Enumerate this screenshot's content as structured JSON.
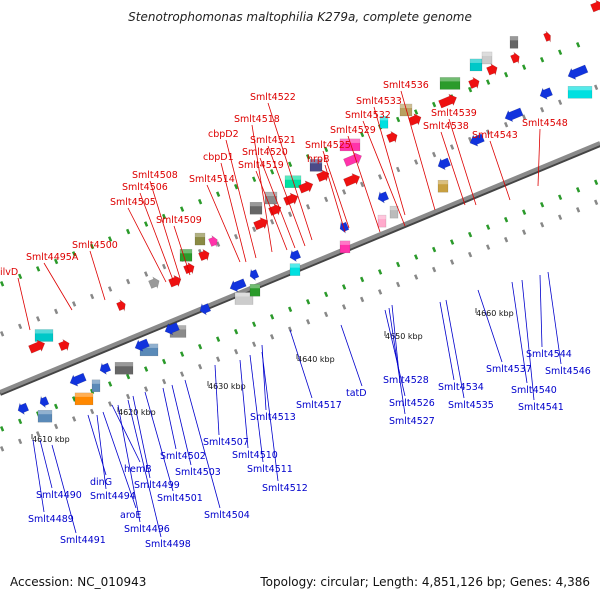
{
  "title": "Stenotrophomonas maltophilia K279a, complete genome",
  "footer": {
    "accession": "Accession: NC_010943",
    "stats": "Topology: circular; Length: 4,851,126 bp; Genes: 4,386"
  },
  "colors": {
    "forward_label": "#dd0000",
    "reverse_label": "#0000cc",
    "forward_gene": "#ee1111",
    "reverse_gene": "#1133dd",
    "backbone": "#8a8a8a",
    "tick": "#2a9a2a"
  },
  "scale_labels": [
    "4610 kbp",
    "4620 kbp",
    "4630 kbp",
    "4640 kbp",
    "4650 kbp",
    "4660 kbp"
  ],
  "forward_labels": [
    "ilvD",
    "Smlt4495A",
    "Smlt4500",
    "Smlt4505",
    "Smlt4506",
    "Smlt4508",
    "Smlt4509",
    "cbpD1",
    "Smlt4514",
    "cbpD2",
    "Smlt4518",
    "Smlt4519",
    "Smlt4520",
    "Smlt4521",
    "Smlt4522",
    "hrpB",
    "Smlt4525",
    "Smlt4529",
    "Smlt4532",
    "Smlt4533",
    "Smlt4536",
    "Smlt4538",
    "Smlt4539",
    "Smlt4543",
    "Smlt4548"
  ],
  "reverse_labels": [
    "Smlt4489",
    "Smlt4490",
    "Smlt4491",
    "dinG",
    "aroE",
    "Smlt4494",
    "hemB",
    "Smlt4496",
    "Smlt4498",
    "Smlt4499",
    "Smlt4501",
    "Smlt4502",
    "Smlt4503",
    "Smlt4504",
    "Smlt4507",
    "Smlt4510",
    "Smlt4511",
    "Smlt4512",
    "Smlt4513",
    "Smlt4517",
    "tatD",
    "Smlt4526",
    "Smlt4527",
    "Smlt4528",
    "Smlt4534",
    "Smlt4535",
    "Smlt4537",
    "Smlt4540",
    "Smlt4541",
    "Smlt4544",
    "Smlt4546"
  ]
}
